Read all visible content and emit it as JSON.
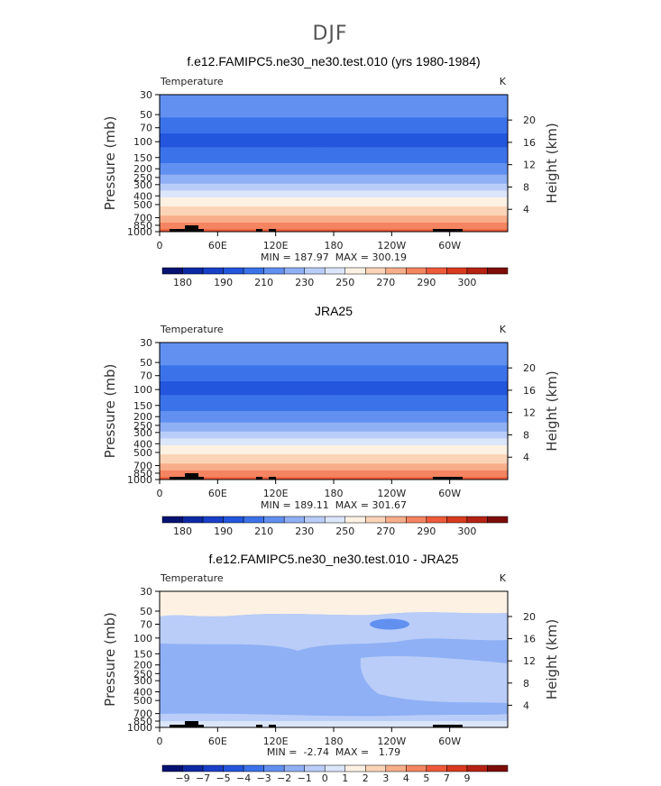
{
  "suptitle": "DJF",
  "colors": {
    "abs": [
      "#061271",
      "#0c2aa4",
      "#1840c8",
      "#2356dc",
      "#3b72ea",
      "#6190f0",
      "#8fb0f5",
      "#b9cdf8",
      "#dce6fb",
      "#fdf1e3",
      "#fbd4b8",
      "#f8ae8a",
      "#f58460",
      "#ee5a3a",
      "#d93a1e",
      "#b52212",
      "#7d0d0a"
    ],
    "diff": [
      "#061271",
      "#0c2aa4",
      "#1840c8",
      "#2356dc",
      "#3b72ea",
      "#6190f0",
      "#8fb0f5",
      "#b9cdf8",
      "#dce6fb",
      "#fdf1e3",
      "#fbd4b8",
      "#f8ae8a",
      "#f58460",
      "#ee5a3a",
      "#d93a1e",
      "#b52212",
      "#7d0d0a"
    ]
  },
  "chart_data": [
    {
      "type": "heatmap",
      "title": "f.e12.FAMIPC5.ne30_ne30.test.010 (yrs 1980-1984)",
      "left_label": "Temperature",
      "units": "K",
      "ylabel": "Pressure (mb)",
      "ylabel_right": "Height (km)",
      "x_ticks": [
        "0",
        "60E",
        "120E",
        "180",
        "120W",
        "60W"
      ],
      "x_range": [
        0,
        360
      ],
      "y_ticks": [
        "30",
        "50",
        "70",
        "100",
        "150",
        "200",
        "250",
        "300",
        "400",
        "500",
        "700",
        "850",
        "1000"
      ],
      "y_ticks_right": [
        "20",
        "16",
        "12",
        "8",
        "4"
      ],
      "ylim": [
        1000,
        30
      ],
      "minmax_label": "MIN = 187.97  MAX = 300.19",
      "min": 187.97,
      "max": 300.19,
      "colorbar_labels": [
        "180",
        "190",
        "210",
        "230",
        "250",
        "270",
        "290",
        "300"
      ]
    },
    {
      "type": "heatmap",
      "title": "JRA25",
      "left_label": "Temperature",
      "units": "K",
      "ylabel": "Pressure (mb)",
      "ylabel_right": "Height (km)",
      "x_ticks": [
        "0",
        "60E",
        "120E",
        "180",
        "120W",
        "60W"
      ],
      "x_range": [
        0,
        360
      ],
      "y_ticks": [
        "30",
        "50",
        "70",
        "100",
        "150",
        "200",
        "250",
        "300",
        "400",
        "500",
        "700",
        "850",
        "1000"
      ],
      "y_ticks_right": [
        "20",
        "16",
        "12",
        "8",
        "4"
      ],
      "ylim": [
        1000,
        30
      ],
      "minmax_label": "MIN = 189.11  MAX = 301.67",
      "min": 189.11,
      "max": 301.67,
      "colorbar_labels": [
        "180",
        "190",
        "210",
        "230",
        "250",
        "270",
        "290",
        "300"
      ]
    },
    {
      "type": "heatmap",
      "title": "f.e12.FAMIPC5.ne30_ne30.test.010 - JRA25",
      "left_label": "Temperature",
      "units": "K",
      "ylabel": "Pressure (mb)",
      "ylabel_right": "Height (km)",
      "x_ticks": [
        "0",
        "60E",
        "120E",
        "180",
        "120W",
        "60W"
      ],
      "x_range": [
        0,
        360
      ],
      "y_ticks": [
        "30",
        "50",
        "70",
        "100",
        "150",
        "200",
        "250",
        "300",
        "400",
        "500",
        "700",
        "850",
        "1000"
      ],
      "y_ticks_right": [
        "20",
        "16",
        "12",
        "8",
        "4"
      ],
      "ylim": [
        1000,
        30
      ],
      "minmax_label": "MIN =  -2.74  MAX =   1.79",
      "min": -2.74,
      "max": 1.79,
      "colorbar_labels": [
        "−9",
        "−7",
        "−5",
        "−4",
        "−3",
        "−2",
        "−1",
        "0",
        "1",
        "2",
        "3",
        "4",
        "5",
        "7",
        "9"
      ]
    }
  ]
}
